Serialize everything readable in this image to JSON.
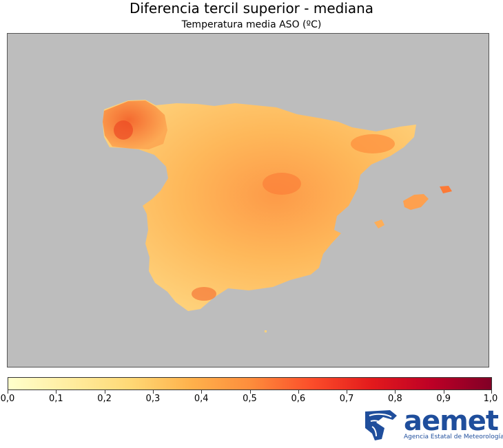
{
  "title": "Diferencia tercil superior - mediana",
  "subtitle": "Temperatura media ASO (ºC)",
  "colorbar": {
    "min": 0.0,
    "max": 1.0,
    "tick_labels": [
      "0,0",
      "0,1",
      "0,2",
      "0,3",
      "0,4",
      "0,5",
      "0,6",
      "0,7",
      "0,8",
      "0,9",
      "1,0"
    ],
    "colors": [
      "#ffffcc",
      "#ffeda0",
      "#fed976",
      "#feb24c",
      "#fd8d3c",
      "#fc4e2a",
      "#e31a1c",
      "#bd0026",
      "#800026"
    ]
  },
  "map": {
    "background_color": "#bdbdbd",
    "regions": [
      {
        "name": "Peninsula Iberica",
        "value": 0.38
      },
      {
        "name": "Galicia",
        "value": 0.55
      },
      {
        "name": "Baleares",
        "value": 0.45
      }
    ]
  },
  "logo": {
    "word": "aemet",
    "subtitle": "Agencia Estatal de Meteorología",
    "color": "#1f4e9c"
  }
}
